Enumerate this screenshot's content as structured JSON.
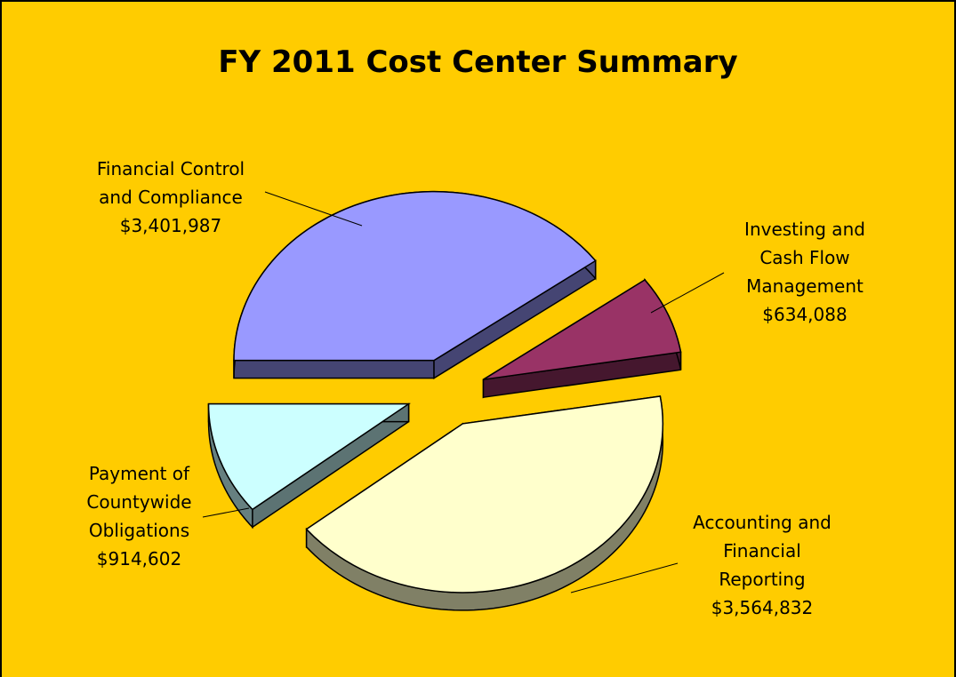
{
  "chart_data": {
    "type": "pie",
    "title": "FY 2011 Cost Center Summary",
    "categories": [
      "Financial Control and Compliance",
      "Investing and Cash Flow Management",
      "Accounting and Financial Reporting",
      "Payment of Countywide Obligations"
    ],
    "values": [
      3401987,
      634088,
      3564832,
      914602
    ],
    "value_labels": [
      "$3,401,987",
      "$634,088",
      "$3,564,832",
      "$914,602"
    ],
    "colors": [
      "#9999ff",
      "#993366",
      "#ffffcc",
      "#ccffff"
    ],
    "background": "#ffcc00"
  }
}
